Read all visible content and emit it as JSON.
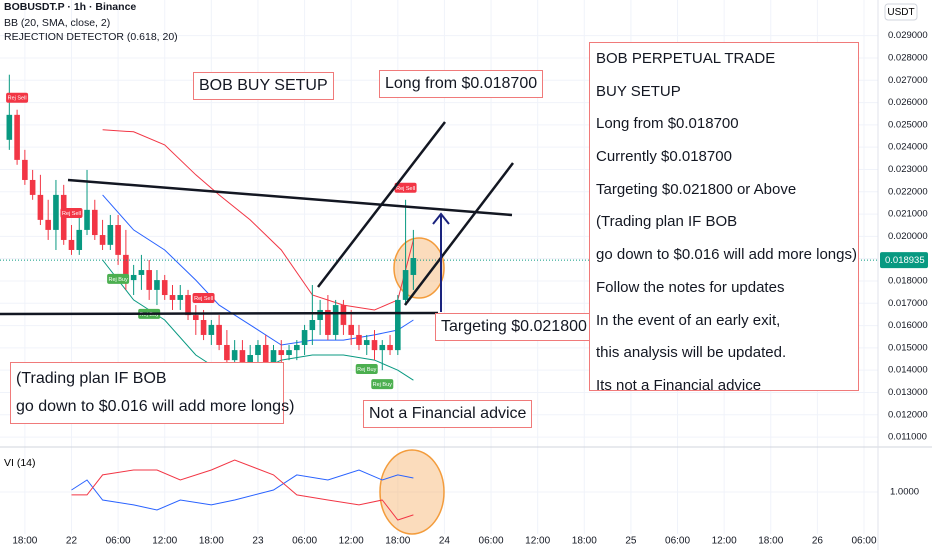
{
  "chart_data": {
    "type": "candlestick",
    "title": "BOBUSDT.P · 1h · Binance",
    "indicators": [
      "BB (20, SMA, close, 2)",
      "REJECTION DETECTOR (0.618, 20)"
    ],
    "y_axis_label": "USDT",
    "grid": true,
    "up_color": "#089981",
    "down_color": "#f23645",
    "xlim": [
      -3.2,
      109.8
    ],
    "xticks": [
      {
        "value": 0,
        "label": "18:00"
      },
      {
        "value": 6,
        "label": "22"
      },
      {
        "value": 12,
        "label": "06:00"
      },
      {
        "value": 18,
        "label": "12:00"
      },
      {
        "value": 24,
        "label": "18:00"
      },
      {
        "value": 30,
        "label": "23"
      },
      {
        "value": 36,
        "label": "06:00"
      },
      {
        "value": 42,
        "label": "12:00"
      },
      {
        "value": 48,
        "label": "18:00"
      },
      {
        "value": 54,
        "label": "24"
      },
      {
        "value": 60,
        "label": "06:00"
      },
      {
        "value": 66,
        "label": "12:00"
      },
      {
        "value": 72,
        "label": "18:00"
      },
      {
        "value": 78,
        "label": "25"
      },
      {
        "value": 84,
        "label": "06:00"
      },
      {
        "value": 90,
        "label": "12:00"
      },
      {
        "value": 96,
        "label": "18:00"
      },
      {
        "value": 102,
        "label": "26"
      },
      {
        "value": 108,
        "label": "06:00"
      }
    ],
    "ylim": [
      0.0106,
      0.0306
    ],
    "yticks": [
      {
        "value": 0.029,
        "label": "0.029000"
      },
      {
        "value": 0.028,
        "label": "0.028000"
      },
      {
        "value": 0.027,
        "label": "0.027000"
      },
      {
        "value": 0.026,
        "label": "0.026000"
      },
      {
        "value": 0.025,
        "label": "0.025000"
      },
      {
        "value": 0.024,
        "label": "0.024000"
      },
      {
        "value": 0.023,
        "label": "0.023000"
      },
      {
        "value": 0.022,
        "label": "0.022000"
      },
      {
        "value": 0.021,
        "label": "0.021000"
      },
      {
        "value": 0.02,
        "label": "0.020000"
      },
      {
        "value": 0.019,
        "label": "0.019000"
      },
      {
        "value": 0.018,
        "label": "0.018000"
      },
      {
        "value": 0.017,
        "label": "0.017000"
      },
      {
        "value": 0.016,
        "label": "0.016000"
      },
      {
        "value": 0.015,
        "label": "0.015000"
      },
      {
        "value": 0.014,
        "label": "0.014000"
      },
      {
        "value": 0.013,
        "label": "0.013000"
      },
      {
        "value": 0.012,
        "label": "0.012000"
      },
      {
        "value": 0.011,
        "label": "0.011000"
      }
    ],
    "x": [
      -2,
      -1,
      0,
      1,
      2,
      3,
      4,
      5,
      6,
      7,
      8,
      9,
      10,
      11,
      12,
      13,
      14,
      15,
      16,
      17,
      18,
      19,
      20,
      21,
      22,
      23,
      24,
      25,
      26,
      27,
      28,
      29,
      30,
      31,
      32,
      33,
      34,
      35,
      36,
      37,
      38,
      39,
      40,
      41,
      42,
      43,
      44,
      45,
      46,
      47,
      48,
      49,
      50
    ],
    "open": [
      0.02433,
      0.02545,
      0.02343,
      0.02253,
      0.02186,
      0.02074,
      0.02029,
      0.02186,
      0.01984,
      0.01939,
      0.02029,
      0.02119,
      0.02006,
      0.01962,
      0.02051,
      0.01917,
      0.01804,
      0.01827,
      0.01849,
      0.0176,
      0.01804,
      0.01737,
      0.01715,
      0.01737,
      0.01647,
      0.01625,
      0.01558,
      0.01603,
      0.01513,
      0.01445,
      0.0149,
      0.01423,
      0.01468,
      0.01513,
      0.014,
      0.0149,
      0.01468,
      0.0149,
      0.01513,
      0.0158,
      0.01625,
      0.0167,
      0.01558,
      0.01692,
      0.01603,
      0.01558,
      0.01513,
      0.01535,
      0.0149,
      0.01513,
      0.0149,
      0.01715,
      0.01827
    ],
    "high": [
      0.02725,
      0.02568,
      0.02388,
      0.02298,
      0.02276,
      0.02164,
      0.02253,
      0.02231,
      0.02051,
      0.02096,
      0.02298,
      0.02164,
      0.02074,
      0.02096,
      0.02096,
      0.02029,
      0.01872,
      0.01917,
      0.01894,
      0.01849,
      0.01827,
      0.01782,
      0.01782,
      0.0176,
      0.01692,
      0.0167,
      0.01625,
      0.01647,
      0.0158,
      0.01535,
      0.01535,
      0.01513,
      0.01535,
      0.01558,
      0.01513,
      0.01535,
      0.01513,
      0.01535,
      0.01603,
      0.01782,
      0.01715,
      0.01737,
      0.01715,
      0.01715,
      0.0167,
      0.01603,
      0.01558,
      0.0158,
      0.01535,
      0.01558,
      0.01737,
      0.02164,
      0.02029
    ],
    "low": [
      0.02388,
      0.02321,
      0.02231,
      0.02164,
      0.02051,
      0.01984,
      0.01939,
      0.01962,
      0.01917,
      0.01917,
      0.02006,
      0.01984,
      0.01939,
      0.01939,
      0.01872,
      0.0176,
      0.01737,
      0.0176,
      0.01715,
      0.01692,
      0.01715,
      0.0167,
      0.0167,
      0.01625,
      0.01558,
      0.01535,
      0.01513,
      0.0149,
      0.014,
      0.01378,
      0.01378,
      0.01355,
      0.014,
      0.01355,
      0.01378,
      0.01423,
      0.01445,
      0.01445,
      0.01468,
      0.01513,
      0.01558,
      0.01535,
      0.01535,
      0.01558,
      0.01513,
      0.0149,
      0.01468,
      0.01445,
      0.014,
      0.01468,
      0.01468,
      0.01692,
      0.0176
    ],
    "close": [
      0.02545,
      0.02343,
      0.02253,
      0.02186,
      0.02074,
      0.02029,
      0.02186,
      0.01984,
      0.01939,
      0.02029,
      0.02119,
      0.02006,
      0.01962,
      0.02051,
      0.01917,
      0.01804,
      0.01827,
      0.01849,
      0.0176,
      0.01804,
      0.01737,
      0.01715,
      0.01737,
      0.01647,
      0.01625,
      0.01558,
      0.01603,
      0.01513,
      0.01445,
      0.0149,
      0.01423,
      0.01468,
      0.01513,
      0.014,
      0.0149,
      0.01468,
      0.0149,
      0.01513,
      0.0158,
      0.01625,
      0.0167,
      0.01558,
      0.01692,
      0.01603,
      0.01558,
      0.01513,
      0.01535,
      0.0149,
      0.01513,
      0.0149,
      0.01715,
      0.01849,
      0.01903
    ],
    "last_price": 0.018935,
    "bollinger": {
      "x": [
        10,
        14,
        18,
        22,
        25,
        29,
        33,
        37,
        41,
        45,
        48,
        50
      ],
      "upper": [
        0.02478,
        0.02469,
        0.0241,
        0.02276,
        0.02186,
        0.02074,
        0.01939,
        0.01737,
        0.01692,
        0.0167,
        0.01715,
        0.01984
      ],
      "middle": [
        0.02186,
        0.02029,
        0.01939,
        0.01804,
        0.01692,
        0.01603,
        0.01513,
        0.01535,
        0.01535,
        0.01558,
        0.0158,
        0.01625
      ],
      "lower": [
        0.01894,
        0.01715,
        0.01625,
        0.01468,
        0.014,
        0.01378,
        0.01445,
        0.01468,
        0.01468,
        0.01445,
        0.014,
        0.01355
      ],
      "upper_color": "#f23645",
      "middle_color": "#2962ff",
      "lower_color": "#089981"
    },
    "markers": [
      {
        "label": "Rej Sell",
        "x": -1
      },
      {
        "label": "Rej Sell",
        "x": 6
      },
      {
        "label": "Rej Sell",
        "x": 23
      },
      {
        "label": "Rej Sell",
        "x": 49
      },
      {
        "label": "Rej Buy",
        "x": 12
      },
      {
        "label": "Rej Buy",
        "x": 16
      },
      {
        "label": "Rej Buy",
        "x": 44
      },
      {
        "label": "Rej Buy",
        "x": 46
      }
    ],
    "annotations": {
      "setup": "BOB BUY SETUP",
      "long": "Long from $0.018700",
      "target": "Targeting $0.021800",
      "plan": [
        "(Trading plan IF BOB",
        "go down to $0.016 will add more longs)"
      ],
      "disclaimer": "Not a Financial advice",
      "summary": [
        "BOB PERPETUAL TRADE",
        "BUY SETUP",
        "Long from $0.018700",
        "Currently $0.018700",
        "Targeting $0.021800 or Above",
        "(Trading plan IF BOB",
        "go down to $0.016 will add more longs)",
        "Follow the notes for updates",
        "In the event of an early exit,",
        "this analysis will be updated.",
        "Its not a Financial advice"
      ]
    },
    "vi": {
      "title": "VI (14)",
      "ylim": [
        0.7,
        1.3
      ],
      "yticks": [
        {
          "value": 1,
          "label": "1.0000"
        }
      ],
      "x": [
        6,
        8,
        10,
        14,
        17,
        20,
        24,
        27,
        32,
        35,
        39,
        43,
        46,
        48,
        50
      ],
      "lines": [
        {
          "color": "#2962ff",
          "values": [
            1.015,
            1.09,
            0.94,
            0.903,
            0.865,
            0.94,
            0.903,
            0.94,
            1.015,
            1.128,
            1.09,
            1.165,
            1.09,
            1.128,
            1.105
          ]
        },
        {
          "color": "#f23645",
          "values": [
            0.978,
            0.978,
            1.128,
            1.165,
            1.165,
            1.09,
            1.165,
            1.24,
            1.128,
            0.978,
            0.94,
            0.903,
            0.94,
            0.79,
            0.828
          ]
        }
      ]
    }
  }
}
